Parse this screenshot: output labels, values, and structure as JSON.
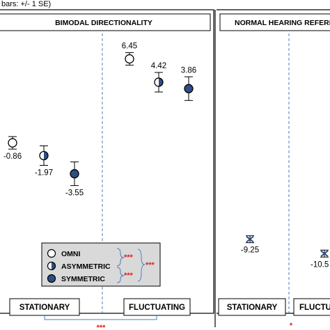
{
  "chart_data": {
    "type": "scatter",
    "caption_fragment": "bars: +/- 1 SE)",
    "panels": [
      {
        "title": "BIMODAL DIRECTIONALITY",
        "conditions": [
          "STATIONARY",
          "FLUCTUATING"
        ],
        "points": [
          {
            "condition": "STATIONARY",
            "series": "OMNI",
            "value": -0.86,
            "label": "-0.86"
          },
          {
            "condition": "STATIONARY",
            "series": "ASYMMETRIC",
            "value": -1.97,
            "label": "-1.97"
          },
          {
            "condition": "STATIONARY",
            "series": "SYMMETRIC",
            "value": -3.55,
            "label": "-3.55"
          },
          {
            "condition": "FLUCTUATING",
            "series": "OMNI",
            "value": 6.45,
            "label": "6.45"
          },
          {
            "condition": "FLUCTUATING",
            "series": "ASYMMETRIC",
            "value": 4.42,
            "label": "4.42"
          },
          {
            "condition": "FLUCTUATING",
            "series": "SYMMETRIC",
            "value": 3.86,
            "label": "3.86"
          }
        ]
      },
      {
        "title": "NORMAL HEARING REFERE",
        "conditions": [
          "STATIONARY",
          "FLUCTUA"
        ],
        "points": [
          {
            "condition": "STATIONARY",
            "series": "REFERENCE",
            "value": -9.25,
            "label": "-9.25"
          },
          {
            "condition": "FLUCTUA",
            "series": "REFERENCE",
            "value": -10.5,
            "label": "-10.5"
          }
        ]
      }
    ],
    "legend": {
      "placement": "bottom-center",
      "entries": [
        "OMNI",
        "ASYMMETRIC",
        "SYMMETRIC"
      ],
      "brackets": [
        "***",
        "***",
        "***"
      ]
    },
    "bottom_significance": [
      "***",
      "*"
    ],
    "colors": {
      "symmetric": "#2e4e84",
      "legend_bg": "#d9d9d9",
      "significance": "#e02020",
      "divider": "#4a7fc1"
    }
  }
}
